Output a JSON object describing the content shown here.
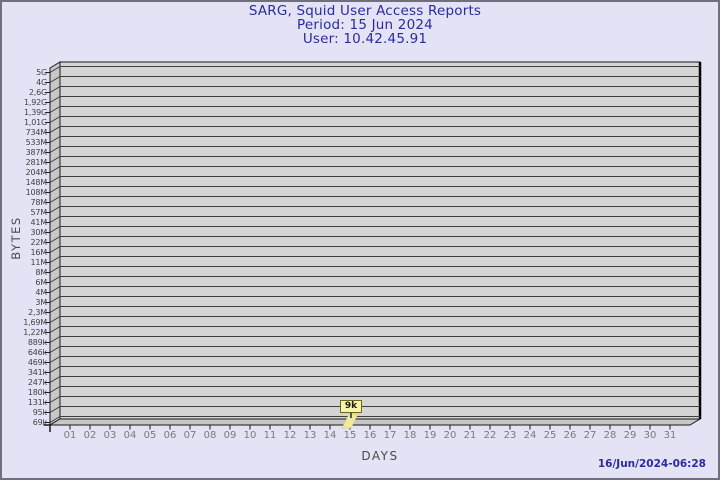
{
  "header": {
    "title": "SARG, Squid User Access Reports",
    "period": "Period: 15 Jun 2024",
    "user": "User: 10.42.45.91"
  },
  "footer": {
    "timestamp": "16/Jun/2024-06:28"
  },
  "chart_data": {
    "type": "bar",
    "title": "SARG, Squid User Access Reports",
    "subtitle": "Period: 15 Jun 2024",
    "user_line": "User: 10.42.45.91",
    "xlabel": "DAYS",
    "ylabel": "BYTES",
    "x_categories": [
      "01",
      "02",
      "03",
      "04",
      "05",
      "06",
      "07",
      "08",
      "09",
      "10",
      "11",
      "12",
      "13",
      "14",
      "15",
      "16",
      "17",
      "18",
      "19",
      "20",
      "21",
      "22",
      "23",
      "24",
      "25",
      "26",
      "27",
      "28",
      "29",
      "30",
      "31"
    ],
    "y_tick_labels_top_to_bottom": [
      "5G",
      "4G",
      "2,6G",
      "1,92G",
      "1,39G",
      "1,01G",
      "734M",
      "533M",
      "387M",
      "281M",
      "204M",
      "148M",
      "108M",
      "78M",
      "57M",
      "41M",
      "30M",
      "22M",
      "16M",
      "11M",
      "8M",
      "6M",
      "4M",
      "3M",
      "2,3M",
      "1,69M",
      "1,22M",
      "889k",
      "646k",
      "469k",
      "341k",
      "247k",
      "180k",
      "131k",
      "95k",
      "69k"
    ],
    "y_scale": "log",
    "ylim": [
      "69k",
      "5G"
    ],
    "grid": "horizontal",
    "legend": "none",
    "bars": [
      {
        "day": "15",
        "label": "9k"
      }
    ],
    "colors": {
      "background": "#e3e3f5",
      "title_text": "#2b2b9d",
      "wall_fill": "#d4d4d4",
      "side_fill": "#c7c7c7",
      "gridline": "#3e3e3e",
      "box_edge": "#1a1a1a",
      "y_tick_text": "#424242",
      "x_tick_text": "#7a7a7a",
      "bar_fill": "#f1ea9e",
      "flag_bg": "#f8f4aa",
      "flag_border": "#72651c"
    }
  }
}
